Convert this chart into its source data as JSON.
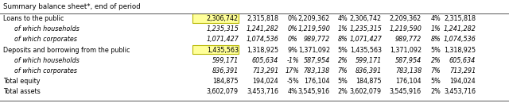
{
  "title": "Summary balance sheet*, end of period",
  "background_color": "#ffffff",
  "highlight_color": "#ffff99",
  "highlight_border": "#b8b800",
  "rows": [
    {
      "label": "Loans to the public",
      "indent": false,
      "cols": [
        "2,306,742",
        "2,315,818",
        "0%",
        "2,209,362",
        "4%",
        "2,306,742",
        "2,209,362",
        "4%",
        "2,315,818"
      ],
      "highlight_col": 0
    },
    {
      "label": "of which households",
      "indent": true,
      "cols": [
        "1,235,315",
        "1,241,282",
        "0%",
        "1,219,590",
        "1%",
        "1,235,315",
        "1,219,590",
        "1%",
        "1,241,282"
      ],
      "highlight_col": -1
    },
    {
      "label": "of which corporates",
      "indent": true,
      "cols": [
        "1,071,427",
        "1,074,536",
        "0%",
        "989,772",
        "8%",
        "1,071,427",
        "989,772",
        "8%",
        "1,074,536"
      ],
      "highlight_col": -1
    },
    {
      "label": "Deposits and borrowing from the public",
      "indent": false,
      "cols": [
        "1,435,563",
        "1,318,925",
        "9%",
        "1,371,092",
        "5%",
        "1,435,563",
        "1,371,092",
        "5%",
        "1,318,925"
      ],
      "highlight_col": 0
    },
    {
      "label": "of which households",
      "indent": true,
      "cols": [
        "599,171",
        "605,634",
        "-1%",
        "587,954",
        "2%",
        "599,171",
        "587,954",
        "2%",
        "605,634"
      ],
      "highlight_col": -1
    },
    {
      "label": "of which corporates",
      "indent": true,
      "cols": [
        "836,391",
        "713,291",
        "17%",
        "783,138",
        "7%",
        "836,391",
        "783,138",
        "7%",
        "713,291"
      ],
      "highlight_col": -1
    },
    {
      "label": "Total equity",
      "indent": false,
      "cols": [
        "184,875",
        "194,024",
        "-5%",
        "176,104",
        "5%",
        "184,875",
        "176,104",
        "5%",
        "194,024"
      ],
      "highlight_col": -1
    },
    {
      "label": "Total assets",
      "indent": false,
      "cols": [
        "3,602,079",
        "3,453,716",
        "4%",
        "3,545,916",
        "2%",
        "3,602,079",
        "3,545,916",
        "2%",
        "3,453,716"
      ],
      "highlight_col": -1
    }
  ],
  "title_fontsize": 6.2,
  "data_fontsize": 5.8,
  "text_color": "#000000"
}
